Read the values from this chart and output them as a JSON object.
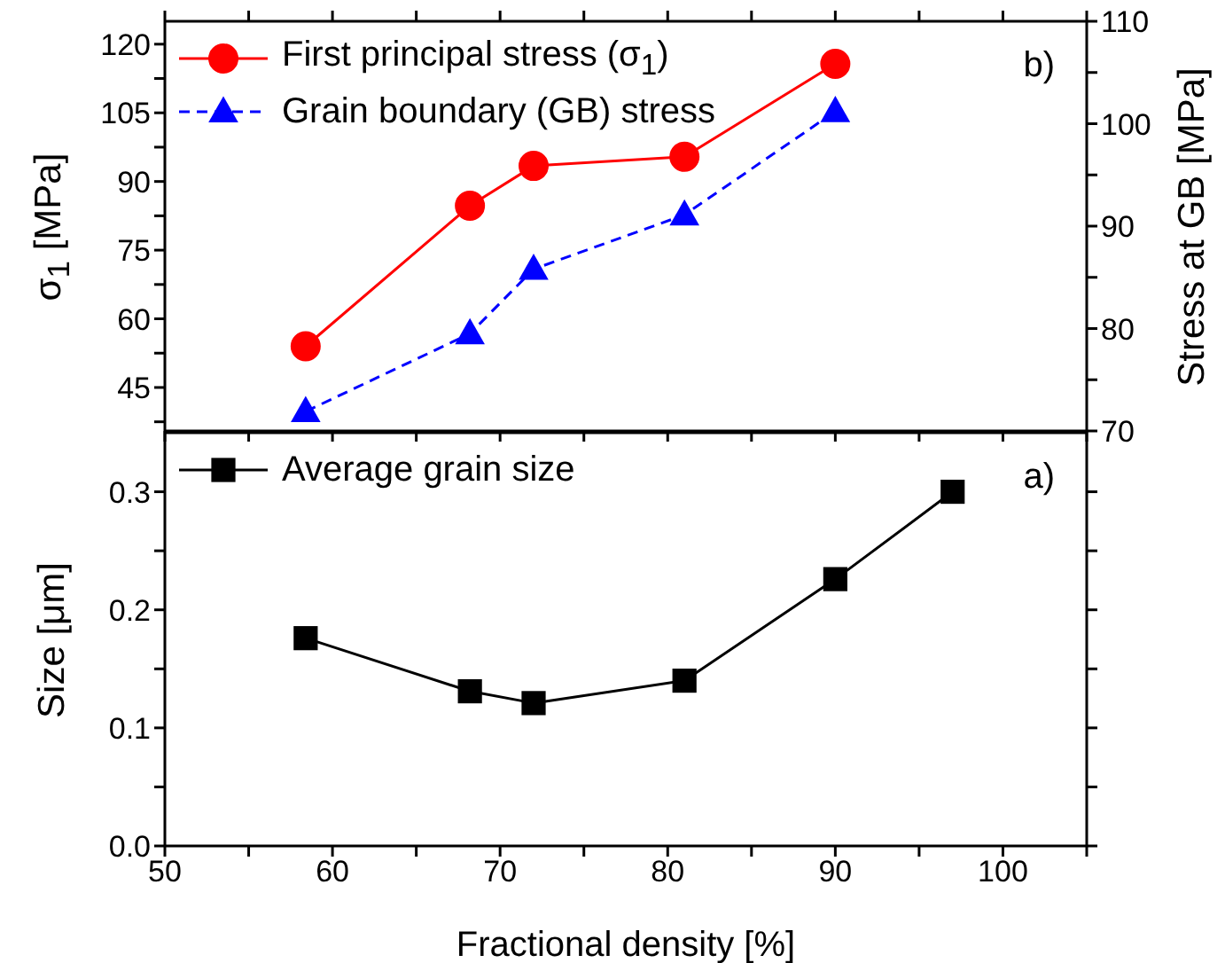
{
  "chart_data": [
    {
      "type": "line",
      "x": [
        58.4,
        68.2,
        72,
        81,
        90
      ],
      "xlim": [
        50,
        105
      ],
      "xticks": [
        50,
        {
          "value": 55,
          "label": null
        },
        60,
        {
          "value": 65,
          "label": null
        },
        70,
        {
          "value": 75,
          "label": null
        },
        80,
        {
          "value": 85,
          "label": null
        },
        90,
        {
          "value": 95,
          "label": null
        },
        100,
        {
          "value": 105,
          "label": null
        }
      ],
      "tick_labels": "y",
      "ylim": [
        35.5,
        125
      ],
      "yticks": [
        {
          "value": 37.5,
          "label": null
        },
        45,
        {
          "value": 52.5,
          "label": null
        },
        60,
        {
          "value": 67.5,
          "label": null
        },
        75,
        {
          "value": 82.5,
          "label": null
        },
        90,
        {
          "value": 97.5,
          "label": null
        },
        105,
        {
          "value": 112.5,
          "label": null
        },
        120
      ],
      "y2lim": [
        70,
        110
      ],
      "y2ticks": [
        70,
        {
          "value": 75,
          "label": null
        },
        80,
        {
          "value": 85,
          "label": null
        },
        90,
        {
          "value": 95,
          "label": null
        },
        100,
        {
          "value": 105,
          "label": null
        },
        110
      ],
      "ylabel": "σ$_{1}$ [MPa]",
      "y2label": "Stress at GB [MPa]",
      "annotations": [
        "b)"
      ],
      "legend": "top left",
      "grid": false,
      "series": [
        {
          "name": "First principal stress (σ$_{1}$)",
          "color": "#ff0000",
          "marker": "circle",
          "line_style": "solid",
          "values": [
            54,
            84.7,
            93.4,
            95.4,
            115.7
          ]
        },
        {
          "name": "Grain boundary (GB) stress",
          "color": "#0000ff",
          "marker": "triangle",
          "line_style": "dashed",
          "axis": "y2",
          "values": [
            71.9,
            79.5,
            85.8,
            91.1,
            101.2
          ]
        }
      ]
    },
    {
      "type": "line",
      "x": [
        58.4,
        68.2,
        72,
        81,
        90,
        97
      ],
      "xlim": [
        50,
        105
      ],
      "xticks": [
        50,
        {
          "value": 55,
          "label": null
        },
        60,
        {
          "value": 65,
          "label": null
        },
        70,
        {
          "value": 75,
          "label": null
        },
        80,
        {
          "value": 85,
          "label": null
        },
        90,
        {
          "value": 95,
          "label": null
        },
        100,
        {
          "value": 105,
          "label": null
        }
      ],
      "ylim": [
        0,
        0.35
      ],
      "yticks": [
        {
          "value": 0,
          "label": "0.0"
        },
        {
          "value": 0.05,
          "label": null
        },
        0.1,
        {
          "value": 0.15,
          "label": null
        },
        0.2,
        {
          "value": 0.25,
          "label": null
        },
        0.3
      ],
      "xlabel": "Fractional density [%]",
      "ylabel": "Size [μm]",
      "annotations": [
        "a)"
      ],
      "legend": "top left",
      "grid": false,
      "series": [
        {
          "name": "Average grain size",
          "color": "#000000",
          "marker": "square",
          "line_style": "solid",
          "values": [
            0.176,
            0.131,
            0.121,
            0.14,
            0.226,
            0.3
          ]
        }
      ]
    }
  ]
}
